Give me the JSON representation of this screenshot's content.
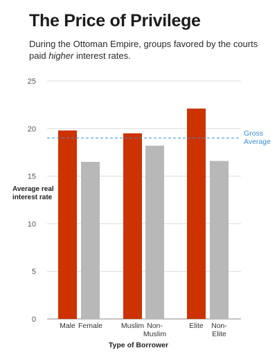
{
  "header": {
    "title": "The Price of Privilege",
    "subtitle_before": "During the Ottoman Empire, groups favored by the courts paid ",
    "subtitle_emphasis": "higher",
    "subtitle_after": " interest rates."
  },
  "chart_data": {
    "type": "bar",
    "title": "The Price of Privilege",
    "xlabel": "Type of Borrower",
    "ylabel": "Average real interest rate",
    "ylim": [
      0,
      25
    ],
    "yticks": [
      0,
      5,
      10,
      15,
      20,
      25
    ],
    "grid": true,
    "categories": [
      {
        "label": [
          "Male"
        ],
        "value": 19.8,
        "color": "#cc3300"
      },
      {
        "label": [
          "Female"
        ],
        "value": 16.5,
        "color": "#b8b8b8"
      },
      {
        "label": [
          "Muslim"
        ],
        "value": 19.5,
        "color": "#cc3300"
      },
      {
        "label": [
          "Non-",
          "Muslim"
        ],
        "value": 18.2,
        "color": "#b8b8b8"
      },
      {
        "label": [
          "Elite"
        ],
        "value": 22.1,
        "color": "#cc3300"
      },
      {
        "label": [
          "Non-",
          "Elite"
        ],
        "value": 16.6,
        "color": "#b8b8b8"
      }
    ],
    "reference_line": {
      "value": 19.0,
      "label": [
        "Gross",
        "Average"
      ],
      "color": "#3a8fd1",
      "style": "dashed"
    },
    "colors": {
      "privileged": "#cc3300",
      "other": "#b8b8b8",
      "grid": "#dcdcdc",
      "axis_text": "#555555"
    }
  }
}
